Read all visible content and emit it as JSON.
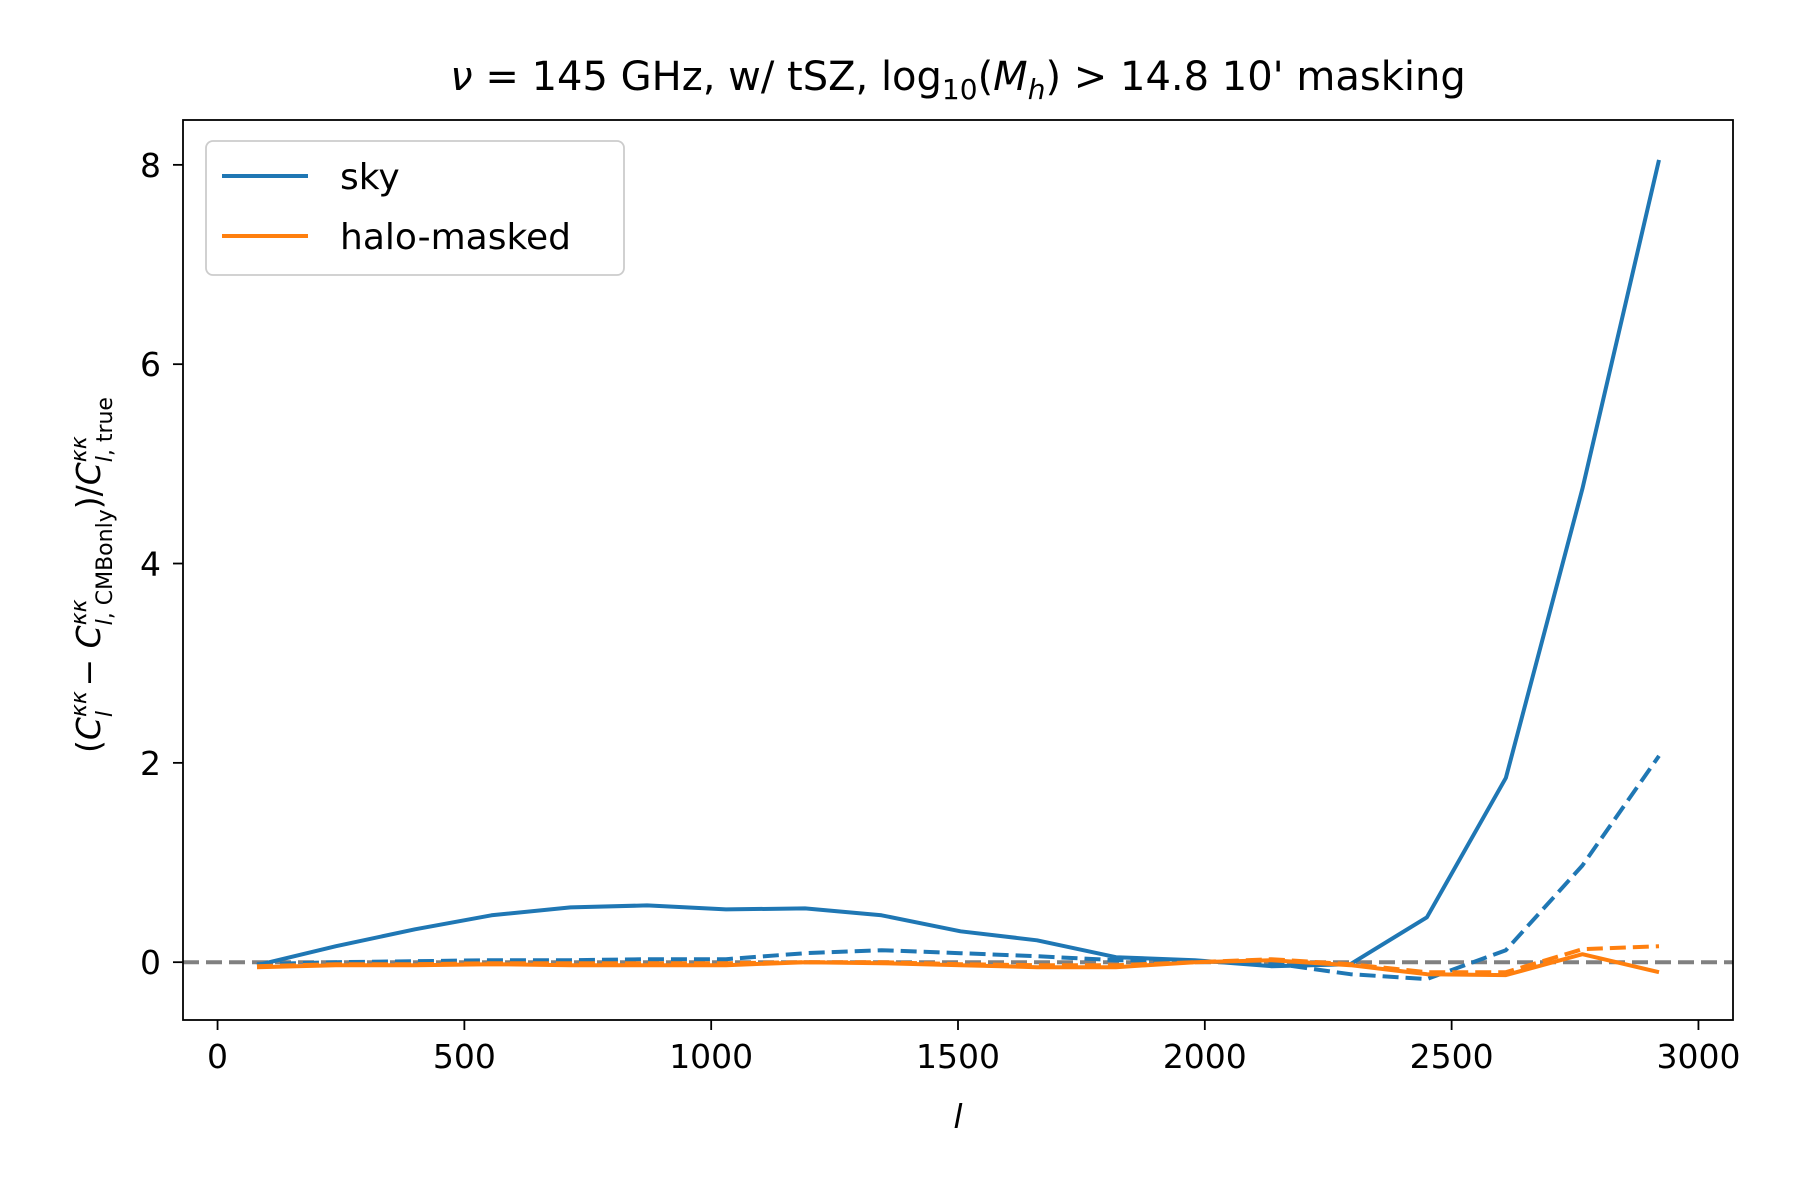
{
  "chart_data": {
    "type": "line",
    "title": "ν = 145 GHz, w/ tSZ, log10(Mh) > 14.8 10' masking",
    "xlabel": "l",
    "ylabel": "(C_l^κκ − C_l,CMBonly^κκ)/C_l,true^κκ",
    "xlim": [
      -70,
      3070
    ],
    "ylim": [
      -0.58,
      8.45
    ],
    "xticks": [
      0,
      500,
      1000,
      1500,
      2000,
      2500,
      3000
    ],
    "yticks": [
      0,
      2,
      4,
      6,
      8
    ],
    "legend_position": "upper-left",
    "reference_line": {
      "y": 0,
      "style": "dashed",
      "color": "#808080"
    },
    "series": [
      {
        "name": "sky",
        "style": "solid",
        "color": "#1f77b4",
        "x": [
          80,
          240,
          400,
          555,
          715,
          870,
          1030,
          1190,
          1345,
          1505,
          1660,
          1820,
          1980,
          2135,
          2295,
          2450,
          2610,
          2765,
          2920
        ],
        "y": [
          -0.03,
          0.16,
          0.33,
          0.47,
          0.55,
          0.57,
          0.53,
          0.54,
          0.47,
          0.31,
          0.22,
          0.05,
          0.02,
          -0.04,
          -0.02,
          0.45,
          1.85,
          4.75,
          8.05
        ]
      },
      {
        "name": "",
        "style": "dashed",
        "color": "#1f77b4",
        "x": [
          80,
          240,
          400,
          555,
          715,
          870,
          1030,
          1190,
          1345,
          1505,
          1660,
          1820,
          1980,
          2135,
          2295,
          2450,
          2610,
          2765,
          2920
        ],
        "y": [
          -0.02,
          0.0,
          0.01,
          0.02,
          0.02,
          0.03,
          0.03,
          0.09,
          0.12,
          0.09,
          0.06,
          0.02,
          0.01,
          -0.01,
          -0.12,
          -0.17,
          0.12,
          0.97,
          2.07
        ]
      },
      {
        "name": "halo-masked",
        "style": "solid",
        "color": "#ff7f0e",
        "x": [
          80,
          240,
          400,
          555,
          715,
          870,
          1030,
          1190,
          1345,
          1505,
          1660,
          1820,
          1980,
          2135,
          2295,
          2450,
          2610,
          2765,
          2920
        ],
        "y": [
          -0.05,
          -0.03,
          -0.03,
          -0.02,
          -0.03,
          -0.03,
          -0.03,
          0.0,
          -0.01,
          -0.03,
          -0.05,
          -0.05,
          0.0,
          0.02,
          -0.03,
          -0.12,
          -0.13,
          0.08,
          -0.1
        ]
      },
      {
        "name": "",
        "style": "dashed",
        "color": "#ff7f0e",
        "x": [
          80,
          240,
          400,
          555,
          715,
          870,
          1030,
          1190,
          1345,
          1505,
          1660,
          1820,
          1980,
          2135,
          2295,
          2450,
          2610,
          2765,
          2920
        ],
        "y": [
          -0.04,
          -0.02,
          -0.02,
          -0.01,
          -0.01,
          -0.01,
          -0.01,
          0.0,
          0.0,
          -0.02,
          -0.03,
          -0.03,
          0.0,
          0.03,
          -0.02,
          -0.1,
          -0.1,
          0.13,
          0.16
        ]
      }
    ]
  }
}
